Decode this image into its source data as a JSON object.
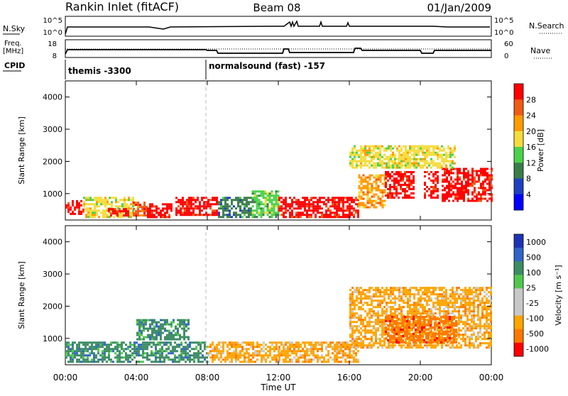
{
  "header": {
    "station": "Rankin Inlet (fitACF)",
    "beam": "Beam 08",
    "date": "01/Jan/2009"
  },
  "left_labels": {
    "nsky": "N.Sky",
    "freq_line1": "Freq.",
    "freq_line2": "[MHz]",
    "cpid": "CPID"
  },
  "right_labels": {
    "nsearch": "N.Search",
    "nave": "Nave"
  },
  "ticks": {
    "nsky_top": "10^5",
    "nsky_bottom": "10^0",
    "freq_top": "18",
    "freq_bottom": "8",
    "nave_top": "60",
    "nave_bottom": "0"
  },
  "cpid_segments": [
    {
      "label": "themis -3300"
    },
    {
      "label": "normalsound (fast) -157"
    }
  ],
  "colors": {
    "power": [
      "#0000ff",
      "#1e40c0",
      "#3a7d4a",
      "#4bd24b",
      "#f5dc3c",
      "#ff9a00",
      "#f05a14",
      "#ff0000"
    ],
    "velocity": [
      "#ff0000",
      "#ff7800",
      "#ffa500",
      "#c8c8c8",
      "#c8c8c8",
      "#50c850",
      "#3c8c64",
      "#3264c8",
      "#1e32b4"
    ],
    "trace": "#000000",
    "dash": "#bbbbbb"
  },
  "chart_data": [
    {
      "type": "heatmap",
      "title": "Power",
      "xlabel": "Time UT",
      "ylabel": "Slant Range [km]",
      "x_ticks": [
        "00:00",
        "04:00",
        "08:00",
        "12:00",
        "16:00",
        "20:00",
        "00:00"
      ],
      "y_ticks": [
        "1000",
        "2000",
        "3000",
        "4000"
      ],
      "ylim": [
        180,
        4500
      ],
      "colorbar": {
        "label": "Power [dB]",
        "ticks": [
          "4",
          "8",
          "12",
          "16",
          "20",
          "24",
          "28"
        ]
      },
      "series": [
        {
          "x": [
            0.0,
            1.0
          ],
          "y": [
            350,
            800
          ],
          "level": 7
        },
        {
          "x": [
            1.0,
            3.8
          ],
          "y": [
            250,
            900
          ],
          "level": 4
        },
        {
          "x": [
            2.4,
            3.5
          ],
          "y": [
            300,
            550
          ],
          "level": 7
        },
        {
          "x": [
            3.8,
            4.6
          ],
          "y": [
            300,
            750
          ],
          "level": 6
        },
        {
          "x": [
            4.6,
            6.0
          ],
          "y": [
            250,
            700
          ],
          "level": 7
        },
        {
          "x": [
            6.2,
            8.6
          ],
          "y": [
            350,
            900
          ],
          "level": 7
        },
        {
          "x": [
            8.6,
            10.5
          ],
          "y": [
            300,
            900
          ],
          "level": 2
        },
        {
          "x": [
            10.5,
            12.0
          ],
          "y": [
            300,
            1100
          ],
          "level": 3
        },
        {
          "x": [
            12.0,
            16.5
          ],
          "y": [
            250,
            900
          ],
          "level": 7
        },
        {
          "x": [
            16.5,
            18.0
          ],
          "y": [
            600,
            1600
          ],
          "level": 5
        },
        {
          "x": [
            18.0,
            19.6
          ],
          "y": [
            900,
            1700
          ],
          "level": 7
        },
        {
          "x": [
            20.2,
            21.0
          ],
          "y": [
            900,
            1700
          ],
          "level": 7
        },
        {
          "x": [
            21.2,
            24.0
          ],
          "y": [
            800,
            1800
          ],
          "level": 7
        },
        {
          "x": [
            16.0,
            22.0
          ],
          "y": [
            1800,
            2500
          ],
          "level": 4
        }
      ]
    },
    {
      "type": "heatmap",
      "title": "Velocity",
      "xlabel": "Time UT",
      "ylabel": "Slant Range [km]",
      "x_ticks": [
        "00:00",
        "04:00",
        "08:00",
        "12:00",
        "16:00",
        "20:00",
        "00:00"
      ],
      "y_ticks": [
        "1000",
        "2000",
        "3000",
        "4000"
      ],
      "ylim": [
        180,
        4500
      ],
      "colorbar": {
        "label": "Velocity [m s⁻¹]",
        "ticks": [
          "1000",
          "500",
          "100",
          "25",
          "-25",
          "-100",
          "-500",
          "-1000"
        ]
      },
      "series": [
        {
          "x": [
            0.0,
            8.0
          ],
          "y": [
            250,
            900
          ],
          "level": 6
        },
        {
          "x": [
            4.0,
            7.0
          ],
          "y": [
            1000,
            1600
          ],
          "level": 6
        },
        {
          "x": [
            8.0,
            12.0
          ],
          "y": [
            300,
            900
          ],
          "level": 2
        },
        {
          "x": [
            12.0,
            16.5
          ],
          "y": [
            300,
            900
          ],
          "level": 2
        },
        {
          "x": [
            16.0,
            24.0
          ],
          "y": [
            700,
            2600
          ],
          "level": 2
        },
        {
          "x": [
            18.0,
            22.0
          ],
          "y": [
            900,
            1700
          ],
          "level": 1
        }
      ]
    }
  ]
}
